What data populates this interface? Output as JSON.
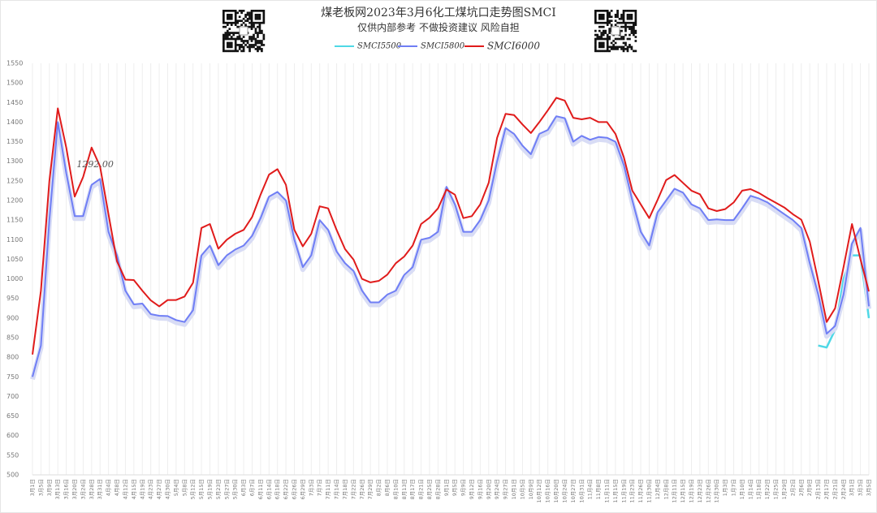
{
  "chart_data": {
    "type": "line",
    "title": "煤老板网2023年3月6化工煤坑口走势图SMCI",
    "subtitle": "仅供内部参考 不做投资建议 风险自担",
    "annotations": [
      {
        "text": "1292.00",
        "category": "3月24日"
      }
    ],
    "categories": [
      "3月1日",
      "3月5日",
      "3月9日",
      "3月13日",
      "3月16日",
      "3月20日",
      "3月24日",
      "3月28日",
      "3月31日",
      "4月4日",
      "4月8日",
      "4月12日",
      "4月15日",
      "4月19日",
      "4月23日",
      "4月27日",
      "4月30日",
      "5月4日",
      "5月8日",
      "5月12日",
      "5月15日",
      "5月19日",
      "5月23日",
      "5月27日",
      "5月30日",
      "6月3日",
      "6月7日",
      "6月11日",
      "6月14日",
      "6月18日",
      "6月22日",
      "6月26日",
      "6月29日",
      "7月3日",
      "7月7日",
      "7月11日",
      "7月14日",
      "7月18日",
      "7月22日",
      "7月26日",
      "7月29日",
      "8月2日",
      "8月6日",
      "8月10日",
      "8月13日",
      "8月17日",
      "8月21日",
      "8月25日",
      "8月28日",
      "9月1日",
      "9月5日",
      "9月9日",
      "9月12日",
      "9月16日",
      "9月20日",
      "9月24日",
      "9月27日",
      "10月1日",
      "10月5日",
      "10月9日",
      "10月12日",
      "10月16日",
      "10月20日",
      "10月24日",
      "10月27日",
      "10月31日",
      "11月4日",
      "11月8日",
      "11月11日",
      "11月15日",
      "11月19日",
      "11月23日",
      "11月26日",
      "11月30日",
      "12月4日",
      "12月8日",
      "12月11日",
      "12月15日",
      "12月19日",
      "12月23日",
      "12月26日",
      "12月30日",
      "1月3日",
      "1月7日",
      "1月10日",
      "1月14日",
      "1月18日",
      "1月22日",
      "1月25日",
      "1月29日",
      "2月2日",
      "2月6日",
      "2月9日",
      "2月13日",
      "2月17日",
      "2月21日",
      "2月24日",
      "3月1日",
      "3月3日",
      "3月5日"
    ],
    "series": [
      {
        "name": "SMCI5500",
        "color": "#4fd8e6",
        "values": [
          null,
          null,
          null,
          null,
          null,
          null,
          null,
          null,
          null,
          null,
          null,
          null,
          null,
          null,
          null,
          null,
          null,
          null,
          null,
          null,
          null,
          null,
          null,
          null,
          null,
          null,
          null,
          null,
          null,
          null,
          null,
          null,
          null,
          null,
          null,
          null,
          null,
          null,
          null,
          null,
          null,
          null,
          null,
          null,
          null,
          null,
          null,
          null,
          null,
          null,
          null,
          null,
          null,
          null,
          null,
          null,
          null,
          null,
          null,
          null,
          null,
          null,
          null,
          null,
          null,
          null,
          null,
          null,
          null,
          null,
          null,
          null,
          null,
          null,
          null,
          null,
          null,
          null,
          null,
          null,
          null,
          null,
          null,
          null,
          null,
          null,
          null,
          null,
          null,
          null,
          null,
          null,
          null,
          830,
          825,
          870,
          1000,
          1060,
          1060,
          900
        ]
      },
      {
        "name": "SMCI5800",
        "color": "#6f7ef5",
        "values": [
          750,
          830,
          1150,
          1400,
          1270,
          1160,
          1160,
          1240,
          1255,
          1120,
          1060,
          970,
          935,
          937,
          910,
          906,
          905,
          895,
          890,
          920,
          1060,
          1085,
          1035,
          1060,
          1075,
          1085,
          1110,
          1155,
          1210,
          1222,
          1200,
          1100,
          1030,
          1060,
          1150,
          1125,
          1070,
          1040,
          1020,
          970,
          940,
          940,
          960,
          970,
          1010,
          1030,
          1100,
          1105,
          1120,
          1235,
          1190,
          1120,
          1120,
          1150,
          1200,
          1300,
          1385,
          1370,
          1340,
          1318,
          1370,
          1380,
          1415,
          1410,
          1350,
          1365,
          1355,
          1362,
          1360,
          1350,
          1290,
          1200,
          1120,
          1085,
          1170,
          1200,
          1230,
          1220,
          1190,
          1180,
          1150,
          1152,
          1150,
          1150,
          1180,
          1212,
          1205,
          1195,
          1180,
          1165,
          1150,
          1130,
          1040,
          960,
          860,
          880,
          960,
          1090,
          1130,
          930
        ]
      },
      {
        "name": "SMCI6000",
        "color": "#e01b1b",
        "values": [
          807,
          970,
          1250,
          1435,
          1335,
          1210,
          1260,
          1335,
          1287,
          1165,
          1045,
          998,
          997,
          970,
          945,
          930,
          946,
          946,
          955,
          990,
          1130,
          1140,
          1077,
          1100,
          1115,
          1125,
          1158,
          1215,
          1266,
          1280,
          1240,
          1125,
          1083,
          1115,
          1185,
          1180,
          1125,
          1076,
          1049,
          1000,
          991,
          995,
          1011,
          1040,
          1057,
          1085,
          1140,
          1156,
          1180,
          1228,
          1215,
          1155,
          1160,
          1190,
          1245,
          1360,
          1421,
          1418,
          1394,
          1372,
          1400,
          1430,
          1462,
          1455,
          1411,
          1407,
          1411,
          1400,
          1400,
          1370,
          1310,
          1225,
          1190,
          1155,
          1202,
          1252,
          1265,
          1245,
          1225,
          1216,
          1180,
          1173,
          1178,
          1195,
          1225,
          1229,
          1219,
          1206,
          1194,
          1182,
          1165,
          1151,
          1095,
          995,
          890,
          925,
          1030,
          1140,
          1050,
          968
        ]
      }
    ],
    "ylim": [
      500,
      1550
    ],
    "yticks": [
      500,
      550,
      600,
      650,
      700,
      750,
      800,
      850,
      900,
      950,
      1000,
      1050,
      1100,
      1150,
      1200,
      1250,
      1300,
      1350,
      1400,
      1450,
      1500,
      1550
    ],
    "grid": "x"
  }
}
